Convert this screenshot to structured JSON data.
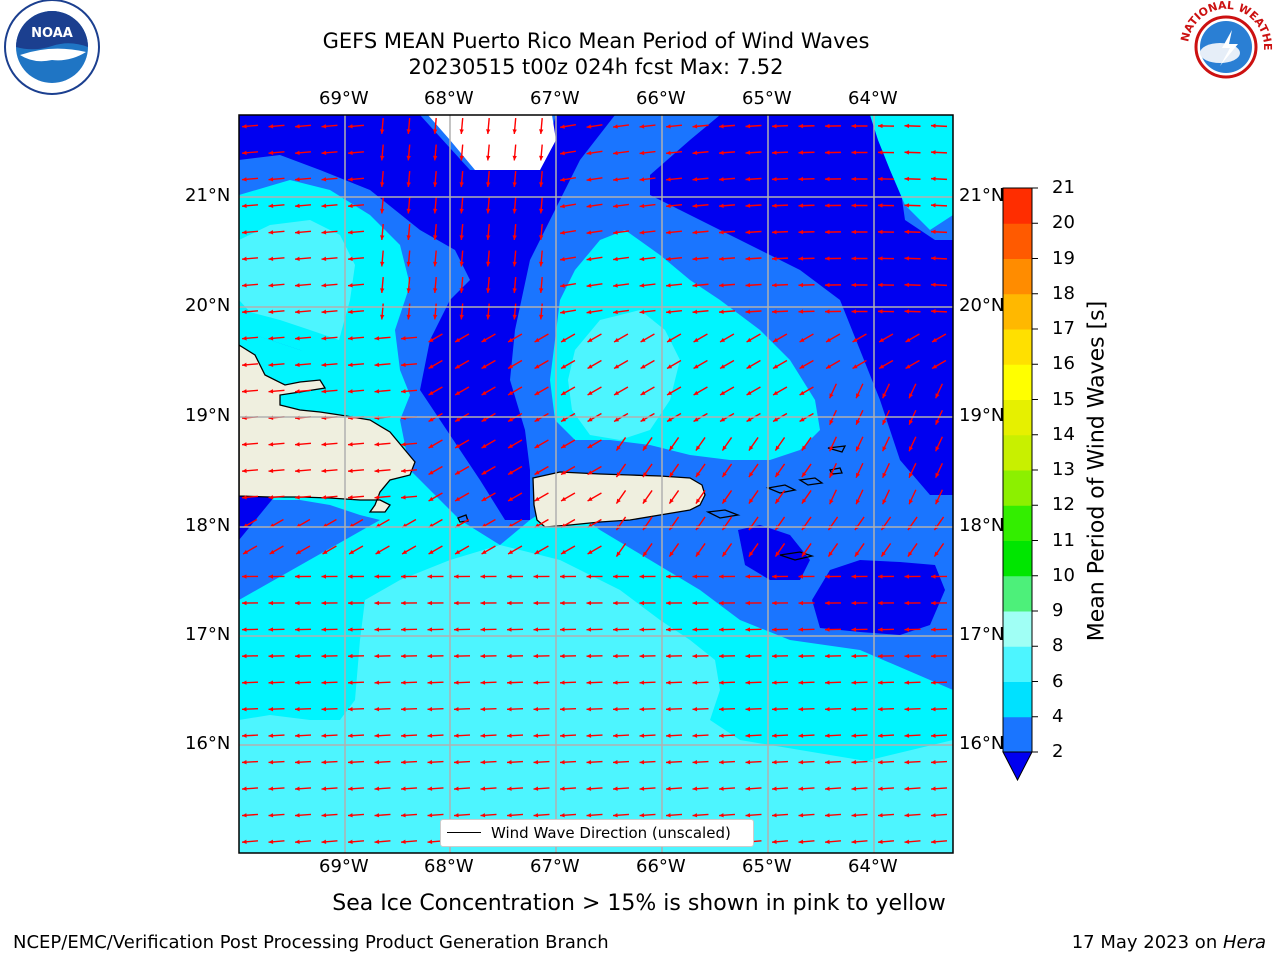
{
  "title": {
    "line1": "GEFS MEAN Puerto Rico Mean Period of Wind Waves",
    "line2": "20230515 t00z 024h fcst   Max: 7.52"
  },
  "lon_labels": [
    "69°W",
    "68°W",
    "67°W",
    "66°W",
    "65°W",
    "64°W"
  ],
  "lat_labels": [
    "21°N",
    "20°N",
    "19°N",
    "18°N",
    "17°N",
    "16°N"
  ],
  "legend": {
    "label": "Wind Wave Direction (unscaled)"
  },
  "colorbar": {
    "title": "Mean Period of Wind Waves [s]",
    "ticks": [
      "2",
      "4",
      "6",
      "8",
      "9",
      "10",
      "11",
      "12",
      "13",
      "14",
      "15",
      "16",
      "17",
      "18",
      "19",
      "20",
      "21"
    ],
    "colors": [
      "#1a75ff",
      "#00e1ff",
      "#4df5ff",
      "#a0fff5",
      "#4df07a",
      "#00e600",
      "#33ee00",
      "#8cf000",
      "#c8f000",
      "#e6f000",
      "#ffff00",
      "#ffe000",
      "#ffb800",
      "#ff8c00",
      "#ff5a00",
      "#ff2d00"
    ],
    "under_color": "#0000f0",
    "over_color": "#ff0000"
  },
  "map_colors": {
    "band_2_4": "#1a75ff",
    "band_lt2": "#0000f0",
    "band_4_6": "#00f5ff",
    "band_6_8": "#4df5ff",
    "band_8_9": "#a0fff5",
    "land": "#efefdf",
    "arrow": "#ff0000"
  },
  "caption": "Sea Ice Concentration > 15% is shown in pink to yellow",
  "footer_left": "NCEP/EMC/Verification Post Processing Product Generation Branch",
  "footer_right_date": "17 May 2023 on ",
  "footer_right_host": "Hera",
  "logos": {
    "noaa_text": "NOAA",
    "nws_text": "NATIONAL WEATHER SERVICE"
  }
}
